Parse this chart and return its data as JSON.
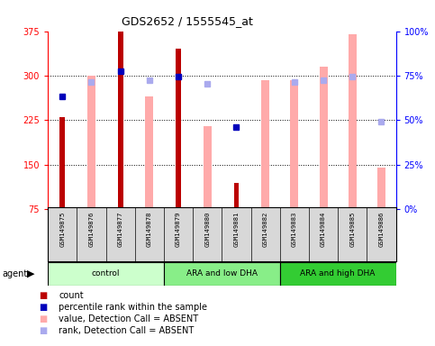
{
  "title": "GDS2652 / 1555545_at",
  "samples": [
    "GSM149875",
    "GSM149876",
    "GSM149877",
    "GSM149878",
    "GSM149879",
    "GSM149880",
    "GSM149881",
    "GSM149882",
    "GSM149883",
    "GSM149884",
    "GSM149885",
    "GSM149886"
  ],
  "count_values": [
    230,
    null,
    375,
    null,
    345,
    null,
    120,
    null,
    null,
    null,
    null,
    null
  ],
  "count_color": "#bb0000",
  "absent_bar_values": [
    null,
    300,
    null,
    265,
    null,
    215,
    null,
    293,
    293,
    315,
    370,
    145
  ],
  "absent_bar_color": "#ffaaaa",
  "percentile_rank_values": [
    265,
    null,
    308,
    null,
    299,
    null,
    213,
    null,
    null,
    null,
    null,
    null
  ],
  "percentile_rank_color": "#0000bb",
  "rank_absent_values": [
    null,
    289,
    null,
    292,
    null,
    286,
    null,
    null,
    289,
    293,
    299,
    222
  ],
  "rank_absent_color": "#aaaaee",
  "ylim_left": [
    75,
    375
  ],
  "ylim_right": [
    0,
    100
  ],
  "yticks_left": [
    75,
    150,
    225,
    300,
    375
  ],
  "ytick_labels_left": [
    "75",
    "150",
    "225",
    "300",
    "375"
  ],
  "yticks_right": [
    0,
    25,
    50,
    75,
    100
  ],
  "ytick_labels_right": [
    "0%",
    "25%",
    "50%",
    "75%",
    "100%"
  ],
  "grid_lines": [
    150,
    225,
    300
  ],
  "group_colors": [
    "#ccffcc",
    "#88ee88",
    "#33cc33"
  ],
  "group_labels": [
    "control",
    "ARA and low DHA",
    "ARA and high DHA"
  ],
  "group_ranges": [
    [
      0,
      3
    ],
    [
      4,
      7
    ],
    [
      8,
      11
    ]
  ],
  "legend_items": [
    {
      "color": "#bb0000",
      "label": "count"
    },
    {
      "color": "#0000bb",
      "label": "percentile rank within the sample"
    },
    {
      "color": "#ffaaaa",
      "label": "value, Detection Call = ABSENT"
    },
    {
      "color": "#aaaaee",
      "label": "rank, Detection Call = ABSENT"
    }
  ]
}
